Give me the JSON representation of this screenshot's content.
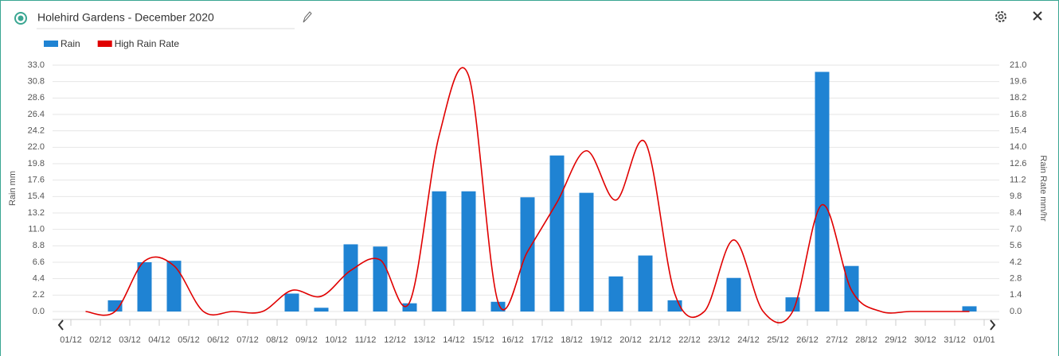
{
  "chart_data": {
    "type": "bar-line",
    "title": "Holehird Gardens - December 2020",
    "y_label": "Rain mm",
    "y2_label": "Rain Rate mm/hr",
    "categories": [
      "01/12",
      "02/12",
      "03/12",
      "04/12",
      "05/12",
      "06/12",
      "07/12",
      "08/12",
      "09/12",
      "10/12",
      "11/12",
      "12/12",
      "13/12",
      "14/12",
      "15/12",
      "16/12",
      "17/12",
      "18/12",
      "19/12",
      "20/12",
      "21/12",
      "22/12",
      "23/12",
      "24/12",
      "25/12",
      "26/12",
      "27/12",
      "28/12",
      "29/12",
      "30/12",
      "31/12",
      "01/01"
    ],
    "series": [
      {
        "name": "Rain",
        "type": "bar",
        "color": "#1f83d3",
        "values": [
          0,
          1.5,
          6.6,
          6.8,
          0,
          0,
          0,
          2.4,
          0.5,
          9.0,
          8.7,
          1.1,
          16.1,
          16.1,
          1.3,
          15.3,
          20.9,
          15.9,
          4.7,
          7.5,
          1.5,
          0,
          4.5,
          0,
          1.9,
          32.1,
          6.1,
          0,
          0,
          0,
          0.7,
          null
        ]
      },
      {
        "name": "High Rain Rate",
        "type": "line",
        "axis": "y2",
        "color": "#e00000",
        "values": [
          0,
          0,
          4.3,
          3.9,
          0,
          0,
          0,
          1.8,
          1.3,
          3.5,
          4.4,
          0.8,
          15.0,
          20.1,
          0.8,
          5.1,
          9.3,
          13.7,
          9.5,
          14.4,
          1.5,
          0,
          6.1,
          0,
          0,
          9.1,
          1.8,
          0,
          0,
          0,
          0,
          null
        ]
      }
    ],
    "ylim": [
      0,
      33
    ],
    "yticks": [
      {
        "value": 0,
        "label": "0.0"
      },
      2.2,
      4.4,
      6.6,
      8.8,
      {
        "value": 11,
        "label": "11.0"
      },
      13.2,
      15.4,
      17.6,
      19.8,
      {
        "value": 22,
        "label": "22.0"
      },
      24.2,
      26.4,
      28.6,
      30.8,
      {
        "value": 33,
        "label": "33.0"
      }
    ],
    "y2lim": [
      0,
      21
    ],
    "y2ticks": [
      {
        "value": 0,
        "label": "0.0"
      },
      1.4,
      2.8,
      4.2,
      5.6,
      {
        "value": 7,
        "label": "7.0"
      },
      8.4,
      9.8,
      11.2,
      12.6,
      {
        "value": 14,
        "label": "14.0"
      },
      15.4,
      16.8,
      18.2,
      19.6,
      {
        "value": 21,
        "label": "21.0"
      }
    ],
    "grid": true,
    "legend": "top-left"
  }
}
